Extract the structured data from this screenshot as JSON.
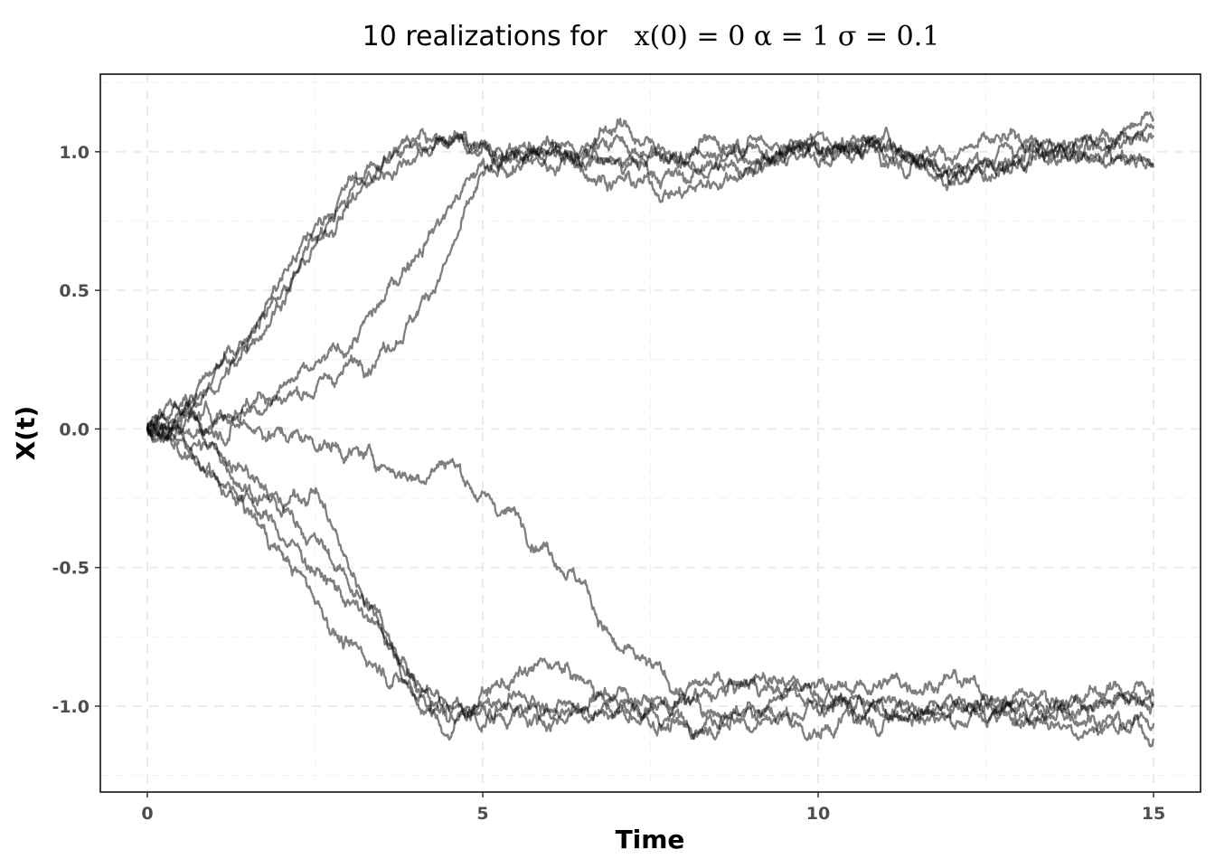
{
  "chart_data": {
    "type": "line",
    "title": "10 realizations for",
    "title_math": "x(0) = 0  α = 1  σ = 0.1",
    "xlabel": "Time",
    "ylabel": "X(t)",
    "xlim": [
      -0.7,
      15.7
    ],
    "ylim": [
      -1.31,
      1.28
    ],
    "x_ticks": [
      0,
      5,
      10,
      15
    ],
    "x_tick_labels": [
      "0",
      "5",
      "10",
      "15"
    ],
    "y_ticks": [
      -1.0,
      -0.5,
      0.0,
      0.5,
      1.0
    ],
    "y_tick_labels": [
      "-1.0",
      "-0.5",
      "0.0",
      "0.5",
      "1.0"
    ],
    "grid": true,
    "line_color": "#000000",
    "line_alpha": 0.5,
    "series": [
      {
        "x": [
          0,
          0.5,
          1,
          1.5,
          2,
          2.5,
          3,
          3.5,
          4,
          4.5,
          5,
          6,
          7,
          8,
          9,
          10,
          11,
          12,
          13,
          14,
          15
        ],
        "values": [
          0,
          0.07,
          0.17,
          0.33,
          0.5,
          0.68,
          0.85,
          0.95,
          1.02,
          1.0,
          1.02,
          0.98,
          1.05,
          0.97,
          1.02,
          0.98,
          1.02,
          1.0,
          1.03,
          0.99,
          1.08
        ]
      },
      {
        "x": [
          0,
          0.5,
          1,
          1.5,
          2,
          2.5,
          3,
          3.5,
          4,
          4.5,
          5,
          6,
          7,
          8,
          9,
          10,
          11,
          12,
          13,
          14,
          15
        ],
        "values": [
          0,
          0.05,
          0.15,
          0.3,
          0.48,
          0.65,
          0.82,
          0.92,
          1.0,
          1.05,
          1.0,
          1.02,
          0.95,
          1.0,
          1.05,
          1.0,
          1.04,
          0.95,
          1.02,
          1.05,
          1.1
        ]
      },
      {
        "x": [
          0,
          0.5,
          1,
          1.5,
          2,
          2.5,
          3,
          3.5,
          4,
          4.5,
          5,
          6,
          7,
          8,
          9,
          10,
          11,
          12,
          13,
          14,
          15
        ],
        "values": [
          0,
          0.08,
          0.2,
          0.35,
          0.55,
          0.72,
          0.88,
          0.97,
          1.04,
          1.07,
          1.0,
          0.95,
          1.1,
          0.95,
          0.92,
          1.05,
          1.0,
          0.9,
          0.98,
          1.0,
          0.97
        ]
      },
      {
        "x": [
          0,
          0.5,
          1,
          1.5,
          2,
          2.5,
          3,
          3.5,
          4,
          4.5,
          5,
          6,
          7,
          8,
          9,
          10,
          11,
          12,
          13,
          14,
          15
        ],
        "values": [
          0,
          0.04,
          0.06,
          0.1,
          0.15,
          0.2,
          0.3,
          0.45,
          0.65,
          0.8,
          0.95,
          1.0,
          0.9,
          0.85,
          0.95,
          1.02,
          1.0,
          0.92,
          0.98,
          1.05,
          1.05
        ]
      },
      {
        "x": [
          0,
          0.5,
          1,
          1.5,
          2,
          2.5,
          3,
          3.5,
          4,
          4.5,
          5,
          6,
          7,
          8,
          9,
          10,
          11,
          12,
          13,
          14,
          15
        ],
        "values": [
          0,
          0.03,
          0.05,
          0.08,
          0.12,
          0.15,
          0.22,
          0.3,
          0.42,
          0.62,
          0.9,
          1.0,
          0.97,
          0.9,
          1.0,
          1.02,
          1.05,
          0.9,
          0.95,
          1.02,
          0.95
        ]
      },
      {
        "x": [
          0,
          0.5,
          1,
          1.5,
          2,
          2.5,
          3,
          3.5,
          4,
          4.5,
          5,
          5.5,
          6,
          6.5,
          7,
          8,
          9,
          10,
          11,
          12,
          13,
          14,
          15
        ],
        "values": [
          0,
          0.02,
          0.0,
          0.02,
          -0.02,
          -0.04,
          -0.08,
          -0.12,
          -0.17,
          -0.1,
          -0.25,
          -0.32,
          -0.42,
          -0.55,
          -0.8,
          -0.95,
          -0.88,
          -0.95,
          -0.92,
          -0.9,
          -1.0,
          -0.95,
          -0.93
        ]
      },
      {
        "x": [
          0,
          0.5,
          1,
          1.5,
          2,
          2.5,
          3,
          3.5,
          4,
          4.5,
          5,
          6,
          7,
          8,
          9,
          10,
          11,
          12,
          13,
          14,
          15
        ],
        "values": [
          0,
          -0.08,
          -0.2,
          -0.3,
          -0.45,
          -0.6,
          -0.8,
          -0.85,
          -0.95,
          -1.0,
          -1.05,
          -1.0,
          -1.02,
          -1.05,
          -1.0,
          -0.95,
          -1.02,
          -1.0,
          -1.05,
          -1.02,
          -1.1
        ]
      },
      {
        "x": [
          0,
          0.5,
          1,
          1.5,
          2,
          2.5,
          3,
          3.5,
          4,
          4.5,
          5,
          6,
          7,
          8,
          9,
          10,
          11,
          12,
          13,
          14,
          15
        ],
        "values": [
          0,
          -0.05,
          -0.15,
          -0.25,
          -0.38,
          -0.5,
          -0.62,
          -0.75,
          -0.92,
          -1.05,
          -1.0,
          -0.98,
          -1.02,
          -0.98,
          -1.05,
          -1.0,
          -0.98,
          -1.05,
          -0.97,
          -1.0,
          -0.97
        ]
      },
      {
        "x": [
          0,
          0.5,
          1,
          1.5,
          2,
          2.5,
          3,
          3.5,
          4,
          4.5,
          5,
          6,
          7,
          8,
          9,
          10,
          11,
          12,
          13,
          14,
          15
        ],
        "values": [
          0,
          -0.03,
          -0.08,
          -0.2,
          -0.3,
          -0.2,
          -0.5,
          -0.7,
          -0.98,
          -1.1,
          -0.95,
          -0.85,
          -0.98,
          -1.1,
          -1.0,
          -1.1,
          -0.95,
          -1.05,
          -1.0,
          -0.98,
          -1.02
        ]
      },
      {
        "x": [
          0,
          0.5,
          1,
          1.5,
          2,
          2.5,
          3,
          3.5,
          4,
          4.5,
          5,
          6,
          7,
          8,
          9,
          10,
          11,
          12,
          13,
          14,
          15
        ],
        "values": [
          0,
          -0.02,
          -0.05,
          -0.15,
          -0.28,
          -0.4,
          -0.55,
          -0.7,
          -0.9,
          -1.02,
          -0.98,
          -1.05,
          -0.95,
          -1.0,
          -0.92,
          -0.98,
          -1.05,
          -0.98,
          -1.02,
          -1.08,
          -1.05
        ]
      }
    ]
  }
}
